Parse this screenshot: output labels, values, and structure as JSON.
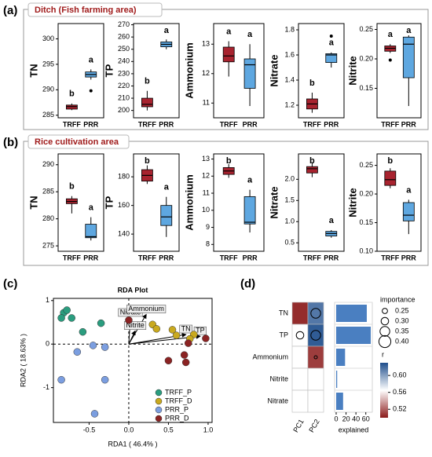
{
  "panel_labels": [
    "(a)",
    "(b)",
    "(c)",
    "(d)"
  ],
  "section_titles": [
    "Ditch (Fish farming area)",
    "Rice cultivation area"
  ],
  "chart_data": [
    {
      "type": "box",
      "ylabel": "TN",
      "categories": [
        "TRFF",
        "PRR"
      ],
      "colors": [
        "#a8232f",
        "#5ea7e0"
      ],
      "ylim": [
        284.5,
        303
      ],
      "yticks": [
        285,
        290,
        295,
        300
      ],
      "boxes": [
        {
          "min": 286,
          "q1": 286.2,
          "median": 286.7,
          "q3": 287,
          "max": 287.3,
          "outliers": [],
          "letter": "b"
        },
        {
          "min": 292,
          "q1": 292.5,
          "median": 293,
          "q3": 293.5,
          "max": 294,
          "outliers": [
            289.8
          ],
          "letter": "a"
        }
      ]
    },
    {
      "type": "box",
      "ylabel": "TP",
      "categories": [
        "TRFF",
        "PRR"
      ],
      "colors": [
        "#a8232f",
        "#5ea7e0"
      ],
      "ylim": [
        194,
        271
      ],
      "yticks": [
        200,
        210,
        220,
        230,
        240,
        250,
        260,
        270
      ],
      "boxes": [
        {
          "min": 200,
          "q1": 203,
          "median": 205,
          "q3": 210,
          "max": 216,
          "outliers": [],
          "letter": "b"
        },
        {
          "min": 250,
          "q1": 252,
          "median": 254,
          "q3": 256,
          "max": 258,
          "outliers": [],
          "letter": "a"
        }
      ]
    },
    {
      "type": "box",
      "ylabel": "Ammonium",
      "categories": [
        "TRFF",
        "PRR"
      ],
      "colors": [
        "#a8232f",
        "#5ea7e0"
      ],
      "ylim": [
        10.5,
        13.7
      ],
      "yticks": [
        11,
        12,
        13
      ],
      "boxes": [
        {
          "min": 11.9,
          "q1": 12.4,
          "median": 12.6,
          "q3": 12.9,
          "max": 13.1,
          "outliers": [],
          "letter": "a"
        },
        {
          "min": 10.9,
          "q1": 11.5,
          "median": 12.3,
          "q3": 12.5,
          "max": 13,
          "outliers": [],
          "letter": "a"
        }
      ]
    },
    {
      "type": "box",
      "ylabel": "Nitrate",
      "categories": [
        "TRFF",
        "PRR"
      ],
      "colors": [
        "#a8232f",
        "#5ea7e0"
      ],
      "ylim": [
        1.1,
        1.85
      ],
      "yticks": [
        1.2,
        1.4,
        1.6,
        1.8
      ],
      "boxes": [
        {
          "min": 1.14,
          "q1": 1.17,
          "median": 1.21,
          "q3": 1.25,
          "max": 1.3,
          "outliers": [],
          "letter": "b"
        },
        {
          "min": 1.5,
          "q1": 1.54,
          "median": 1.6,
          "q3": 1.61,
          "max": 1.62,
          "outliers": [
            1.75
          ],
          "letter": "a"
        }
      ]
    },
    {
      "type": "box",
      "ylabel": "Nitrite",
      "categories": [
        "TRFF",
        "PRR"
      ],
      "colors": [
        "#a8232f",
        "#5ea7e0"
      ],
      "ylim": [
        0.1,
        0.26
      ],
      "yticks": [
        0.15,
        {
          "value": 0.2,
          "label": "0.20"
        },
        0.25
      ],
      "boxes": [
        {
          "min": 0.21,
          "q1": 0.213,
          "median": 0.218,
          "q3": 0.222,
          "max": 0.225,
          "outliers": [
            0.198
          ],
          "letter": "a"
        },
        {
          "min": 0.12,
          "q1": 0.168,
          "median": 0.225,
          "q3": 0.237,
          "max": 0.24,
          "outliers": [],
          "letter": "a"
        }
      ]
    },
    {
      "type": "box",
      "ylabel": "TN",
      "categories": [
        "TRFF",
        "PRR"
      ],
      "colors": [
        "#a8232f",
        "#5ea7e0"
      ],
      "ylim": [
        274,
        292
      ],
      "yticks": [
        275,
        280,
        285,
        290
      ],
      "boxes": [
        {
          "min": 281,
          "q1": 282.8,
          "median": 283.2,
          "q3": 283.7,
          "max": 284.2,
          "outliers": [],
          "letter": "b"
        },
        {
          "min": 276,
          "q1": 276.5,
          "median": 276.7,
          "q3": 279,
          "max": 280.3,
          "outliers": [],
          "letter": "a"
        }
      ]
    },
    {
      "type": "box",
      "ylabel": "TP",
      "categories": [
        "TRFF",
        "PRR"
      ],
      "colors": [
        "#a8232f",
        "#5ea7e0"
      ],
      "ylim": [
        128,
        196
      ],
      "yticks": [
        140,
        160,
        180
      ],
      "boxes": [
        {
          "min": 175,
          "q1": 177,
          "median": 181,
          "q3": 185,
          "max": 188,
          "outliers": [],
          "letter": "b"
        },
        {
          "min": 138,
          "q1": 146,
          "median": 152,
          "q3": 160,
          "max": 166,
          "outliers": [],
          "letter": "a"
        }
      ]
    },
    {
      "type": "box",
      "ylabel": "Ammonium",
      "categories": [
        "TRFF",
        "PRR"
      ],
      "colors": [
        "#a8232f",
        "#5ea7e0"
      ],
      "ylim": [
        7.6,
        13.3
      ],
      "yticks": [
        8,
        9,
        10,
        11,
        12,
        13
      ],
      "boxes": [
        {
          "min": 11.9,
          "q1": 12.1,
          "median": 12.3,
          "q3": 12.5,
          "max": 12.7,
          "outliers": [],
          "letter": "b"
        },
        {
          "min": 8.7,
          "q1": 9.2,
          "median": 9.3,
          "q3": 10.8,
          "max": 11.2,
          "outliers": [],
          "letter": "a"
        }
      ]
    },
    {
      "type": "box",
      "ylabel": "Nitrate",
      "categories": [
        "TRFF",
        "PRR"
      ],
      "colors": [
        "#a8232f",
        "#5ea7e0"
      ],
      "ylim": [
        0.3,
        2.6
      ],
      "yticks": [
        0.5,
        {
          "value": 1,
          "label": "1.0"
        },
        1.5,
        {
          "value": 2,
          "label": "2.0"
        }
      ],
      "boxes": [
        {
          "min": 2.05,
          "q1": 2.15,
          "median": 2.25,
          "q3": 2.3,
          "max": 2.4,
          "outliers": [],
          "letter": "b"
        },
        {
          "min": 0.62,
          "q1": 0.66,
          "median": 0.72,
          "q3": 0.77,
          "max": 0.8,
          "outliers": [],
          "letter": "a"
        }
      ]
    },
    {
      "type": "box",
      "ylabel": "Nitrite",
      "categories": [
        "TRFF",
        "PRR"
      ],
      "colors": [
        "#a8232f",
        "#5ea7e0"
      ],
      "ylim": [
        0.1,
        0.27
      ],
      "yticks": [
        {
          "value": 0.1,
          "label": "0.10"
        },
        0.15,
        {
          "value": 0.2,
          "label": "0.20"
        },
        0.25
      ],
      "boxes": [
        {
          "min": 0.21,
          "q1": 0.215,
          "median": 0.225,
          "q3": 0.24,
          "max": 0.245,
          "outliers": [],
          "letter": "b"
        },
        {
          "min": 0.13,
          "q1": 0.153,
          "median": 0.163,
          "q3": 0.185,
          "max": 0.19,
          "outliers": [],
          "letter": "a"
        }
      ]
    },
    {
      "type": "scatter",
      "title": "RDA Plot",
      "xlabel": "RDA1 ( 46.4% )",
      "ylabel": "RDA2 ( 18.63% )",
      "xlim": [
        -0.95,
        1.05
      ],
      "ylim": [
        -1.8,
        1.05
      ],
      "xticks": [
        -0.5,
        {
          "value": 0,
          "label": "0.0"
        },
        0.5,
        {
          "value": 1,
          "label": "1.0"
        }
      ],
      "yticks": [
        -1,
        0,
        1
      ],
      "series": [
        {
          "name": "TRFF_P",
          "color": "#2a9d7f",
          "x": [
            -0.82,
            -0.78,
            -0.85,
            -0.72,
            -0.35,
            -0.58
          ],
          "y": [
            0.72,
            0.78,
            0.6,
            0.6,
            0.48,
            0.28
          ]
        },
        {
          "name": "TRFF_D",
          "color": "#c9a91e",
          "x": [
            0.3,
            0.35,
            0.55,
            0.6,
            0.82,
            0.77
          ],
          "y": [
            0.45,
            0.35,
            0.33,
            0.2,
            0.22,
            0.12
          ]
        },
        {
          "name": "PRR_P",
          "color": "#7b9ee0",
          "x": [
            -0.65,
            -0.45,
            -0.3,
            -0.85,
            -0.3,
            -0.43
          ],
          "y": [
            -0.18,
            -0.03,
            -0.07,
            -0.82,
            -0.82,
            -1.6
          ]
        },
        {
          "name": "PRR_D",
          "color": "#8b2323",
          "x": [
            0,
            0.97,
            0.75,
            0.7,
            0.5,
            0.72
          ],
          "y": [
            0.55,
            0.13,
            0.02,
            -0.25,
            -0.38,
            -0.42
          ]
        }
      ],
      "arrows": {
        "labels": [
          "Nitrate",
          "Ammonium",
          "Nitrite",
          "TN",
          "TP"
        ],
        "x": [
          0.02,
          0.22,
          0.08,
          0.72,
          0.9
        ],
        "y": [
          0.6,
          0.68,
          0.3,
          0.22,
          0.18
        ]
      }
    },
    {
      "type": "heatmap",
      "rows": [
        "TN",
        "TP",
        "Ammonium",
        "Nitrite",
        "Nitrate"
      ],
      "columns": [
        "PC1",
        "PC2"
      ],
      "values": [
        [
          0.505,
          0.615
        ],
        [
          0.565,
          0.625
        ],
        [
          0.565,
          0.51
        ],
        [
          0.565,
          0.565
        ],
        [
          0.565,
          0.565
        ]
      ],
      "importance": [
        [
          null,
          0.35
        ],
        [
          0.3,
          0.35
        ],
        [
          null,
          0.2
        ],
        [
          null,
          null
        ],
        [
          null,
          null
        ]
      ],
      "colormap": [
        "#8b1a1a",
        "#ffffff",
        "#1f4e8c"
      ],
      "size_legend_title": "importance",
      "size_legend": [
        0.25,
        {
          "value": 0.3,
          "label": "0.30"
        },
        0.35,
        {
          "value": 0.4,
          "label": "0.40"
        }
      ],
      "colorbar_label": "r",
      "colorbar_lim": [
        0.5,
        0.63
      ],
      "colorbar_ticks": [
        0.52,
        0.56,
        {
          "value": 0.6,
          "label": "0.60"
        }
      ],
      "explained": {
        "xlabel": "explained",
        "values": [
          62,
          70,
          18,
          2,
          14
        ],
        "xlim": [
          0,
          70
        ],
        "xticks": [
          0,
          20,
          40,
          60
        ],
        "color": "#4a7fc1"
      }
    }
  ]
}
